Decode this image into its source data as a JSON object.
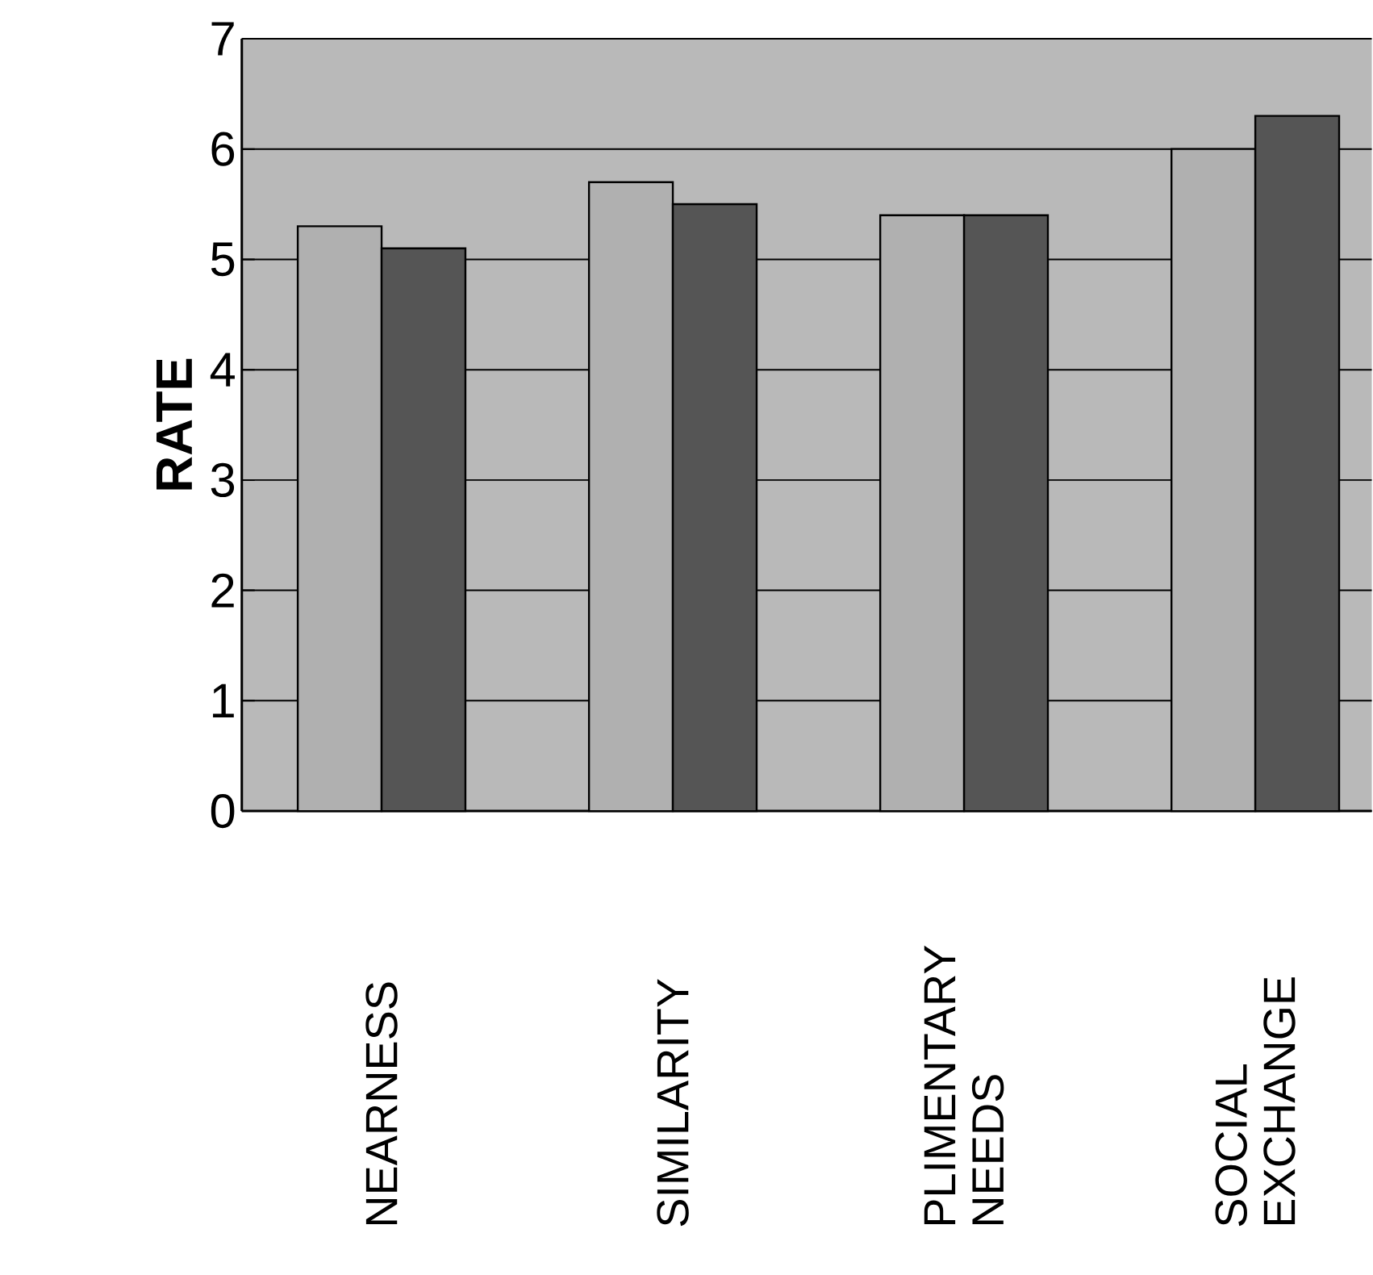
{
  "chart_data": {
    "type": "bar",
    "ylabel": "RATE",
    "categories": [
      "NEARNESS",
      "SIMILARITY",
      "PLIMENTARY NEEDS",
      "SOCIAL EXCHANGE"
    ],
    "series": [
      {
        "color": "#b0b0b0",
        "values": [
          5.3,
          5.7,
          5.4,
          6.0
        ]
      },
      {
        "color": "#555555",
        "values": [
          5.1,
          5.5,
          5.4,
          6.3
        ]
      }
    ],
    "ylim": [
      0,
      7
    ],
    "yticks": [
      0,
      1,
      2,
      3,
      4,
      5,
      6,
      7
    ],
    "grid": "y"
  }
}
